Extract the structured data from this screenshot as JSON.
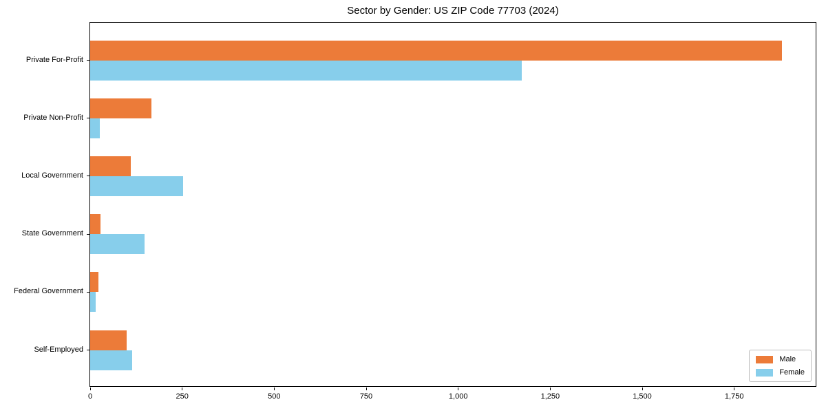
{
  "title": "Sector by Gender: US ZIP Code 77703 (2024)",
  "colors": {
    "male": "#EC7B39",
    "female": "#87CEEB",
    "spine": "#000000",
    "legend_border": "#BDBDBD",
    "background": "#FFFFFF"
  },
  "chart_data": {
    "type": "bar",
    "orientation": "horizontal",
    "title": "Sector by Gender: US ZIP Code 77703 (2024)",
    "categories": [
      "Private For-Profit",
      "Private Non-Profit",
      "Local Government",
      "State Government",
      "Federal Government",
      "Self-Employed"
    ],
    "series": [
      {
        "name": "Male",
        "color": "#EC7B39",
        "values": [
          1880,
          167,
          111,
          28,
          23,
          100
        ]
      },
      {
        "name": "Female",
        "color": "#87CEEB",
        "values": [
          1172,
          26,
          252,
          148,
          15,
          115
        ]
      }
    ],
    "xlabel": "",
    "ylabel": "",
    "xlim": [
      0,
      1975
    ],
    "x_ticks": [
      0,
      250,
      500,
      750,
      1000,
      1250,
      1500,
      1750
    ],
    "x_tick_labels": [
      "0",
      "250",
      "500",
      "750",
      "1,000",
      "1,250",
      "1,500",
      "1,750"
    ],
    "grid": false,
    "legend_position": "lower right",
    "legend_items": [
      "Male",
      "Female"
    ]
  }
}
